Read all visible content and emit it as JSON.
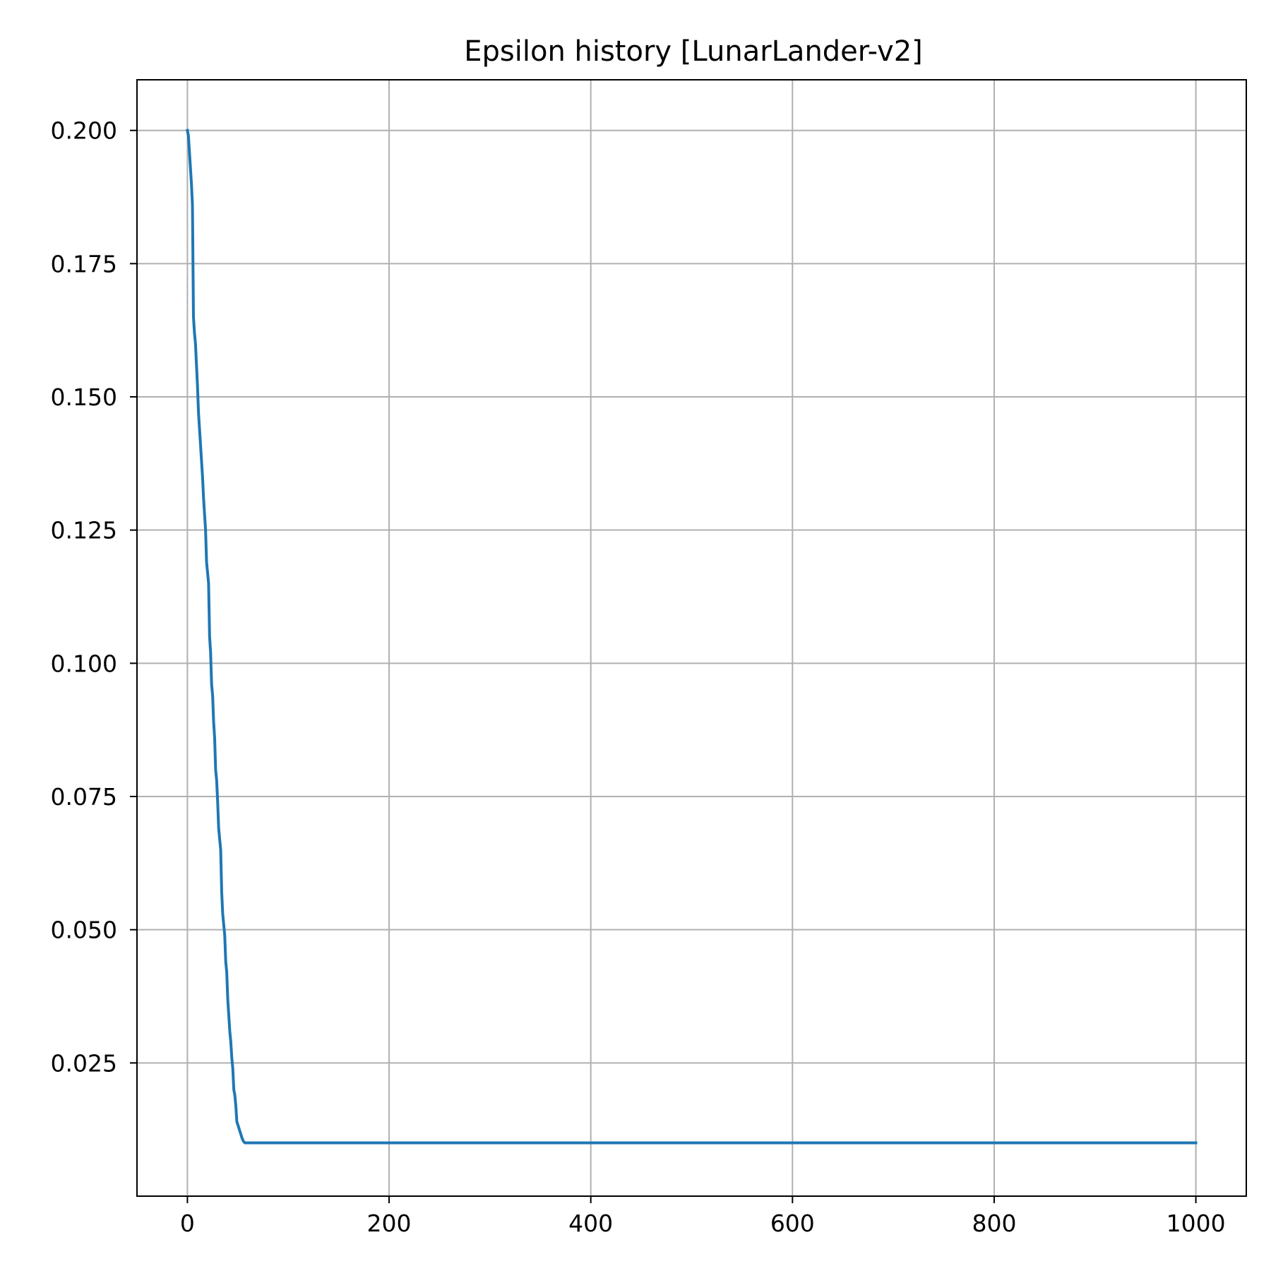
{
  "chart_data": {
    "type": "line",
    "title": "Epsilon history [LunarLander-v2]",
    "xlabel": "",
    "ylabel": "",
    "xlim": [
      -50,
      1050
    ],
    "ylim": [
      0.0,
      0.2095
    ],
    "x_ticks": [
      0,
      200,
      400,
      600,
      800,
      1000
    ],
    "x_tick_labels": [
      "0",
      "200",
      "400",
      "600",
      "800",
      "1000"
    ],
    "y_ticks": [
      0.025,
      0.05,
      0.075,
      0.1,
      0.125,
      0.15,
      0.175,
      0.2
    ],
    "y_tick_labels": [
      "0.025",
      "0.050",
      "0.075",
      "0.100",
      "0.125",
      "0.150",
      "0.175",
      "0.200"
    ],
    "grid": true,
    "colors": {
      "line": "#1f77b4",
      "grid": "#b0b0b0",
      "axes": "#000000"
    },
    "series": [
      {
        "name": "",
        "x": [
          0,
          1,
          2,
          3,
          4,
          5,
          6,
          7,
          8,
          9,
          10,
          11,
          12,
          13,
          14,
          15,
          16,
          17,
          18,
          19,
          20,
          21,
          22,
          23,
          24,
          25,
          26,
          27,
          28,
          29,
          30,
          31,
          32,
          33,
          34,
          35,
          36,
          37,
          38,
          39,
          40,
          41,
          42,
          43,
          44,
          45,
          46,
          47,
          48,
          49,
          50,
          51,
          52,
          53,
          54,
          55,
          56,
          57,
          58,
          59,
          60,
          61,
          62,
          63,
          64,
          65,
          66,
          67,
          68,
          69,
          70,
          71,
          72,
          73,
          74,
          75,
          1000
        ],
        "y": [
          0.2,
          0.199,
          0.196,
          0.193,
          0.19,
          0.186,
          0.165,
          0.162,
          0.16,
          0.156,
          0.152,
          0.147,
          0.144,
          0.141,
          0.138,
          0.135,
          0.131,
          0.128,
          0.125,
          0.119,
          0.117,
          0.115,
          0.105,
          0.102,
          0.096,
          0.094,
          0.089,
          0.086,
          0.08,
          0.078,
          0.074,
          0.069,
          0.067,
          0.065,
          0.057,
          0.053,
          0.051,
          0.049,
          0.044,
          0.042,
          0.037,
          0.034,
          0.031,
          0.029,
          0.026,
          0.024,
          0.02,
          0.019,
          0.017,
          0.014,
          0.0134,
          0.0128,
          0.0122,
          0.0116,
          0.011,
          0.0105,
          0.0102,
          0.01,
          0.01,
          0.01,
          0.01,
          0.01,
          0.01,
          0.01,
          0.01,
          0.01,
          0.01,
          0.01,
          0.01,
          0.01,
          0.01,
          0.01,
          0.01,
          0.01,
          0.01,
          0.01,
          0.01
        ]
      }
    ]
  }
}
